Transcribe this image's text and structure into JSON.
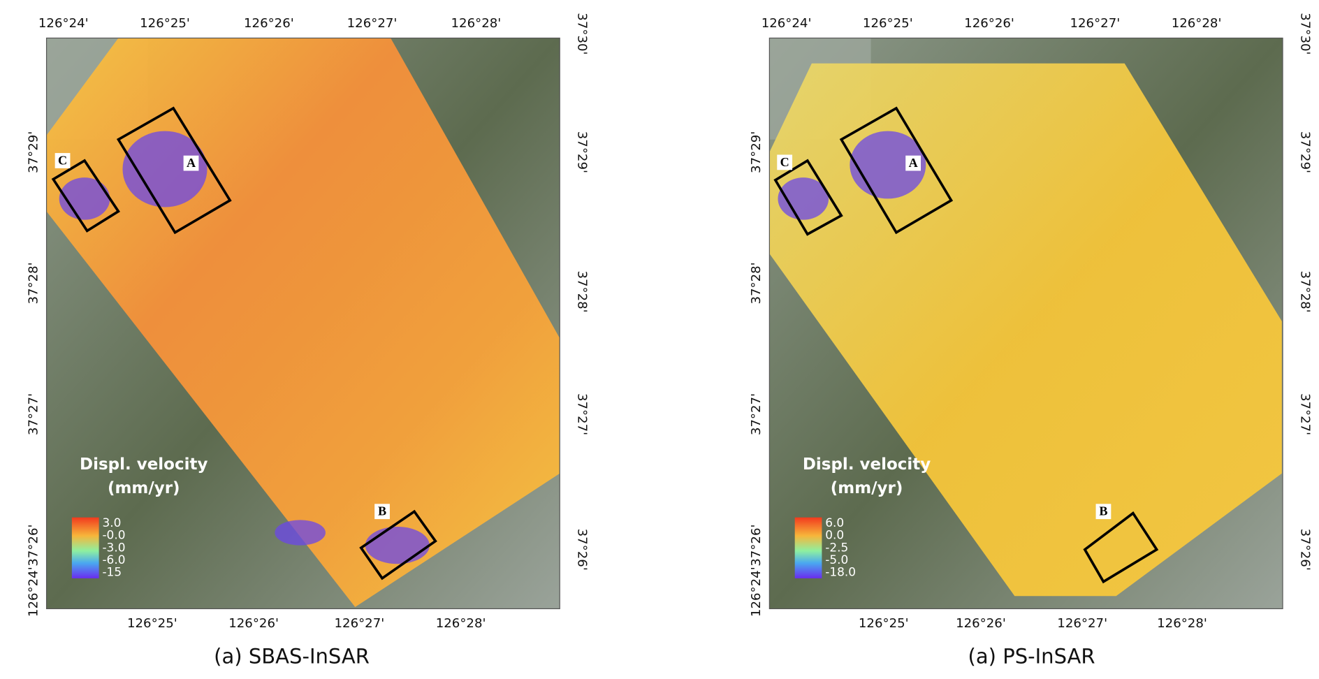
{
  "panels": [
    {
      "top_ticks": [
        "126°24'",
        "126°25'",
        "126°26'",
        "126°27'",
        "126°28'"
      ],
      "right_ticks": [
        "37°30'",
        "37°29'",
        "37°28'",
        "37°27'",
        "37°26'"
      ],
      "left_ticks": [
        "37°29'",
        "37°28'",
        "37°27'",
        "37°26'",
        "126°24'"
      ],
      "bottom_ticks": [
        "126°25'",
        "126°26'",
        "126°27'",
        "126°28'"
      ],
      "legend_title": [
        "Displ. velocity",
        "(mm/yr)"
      ],
      "legend_labels": [
        "3.0",
        "-0.0",
        "-3.0",
        "-6.0",
        "-15"
      ],
      "boxes": [
        "A",
        "B",
        "C"
      ],
      "caption": "(a) SBAS-InSAR"
    },
    {
      "top_ticks": [
        "126°24'",
        "126°25'",
        "126°26'",
        "126°27'",
        "126°28'"
      ],
      "right_ticks": [
        "37°30'",
        "37°29'",
        "37°28'",
        "37°27'",
        "37°26'"
      ],
      "left_ticks": [
        "37°29'",
        "37°28'",
        "37°27'",
        "37°26'",
        "126°24'"
      ],
      "bottom_ticks": [
        "126°25'",
        "126°26'",
        "126°27'",
        "126°28'"
      ],
      "legend_title": [
        "Displ. velocity",
        "(mm/yr)"
      ],
      "legend_labels": [
        "6.0",
        "0.0",
        "-2.5",
        "-5.0",
        "-18.0"
      ],
      "boxes": [
        "A",
        "B",
        "C"
      ],
      "caption": "(a) PS-InSAR"
    }
  ]
}
